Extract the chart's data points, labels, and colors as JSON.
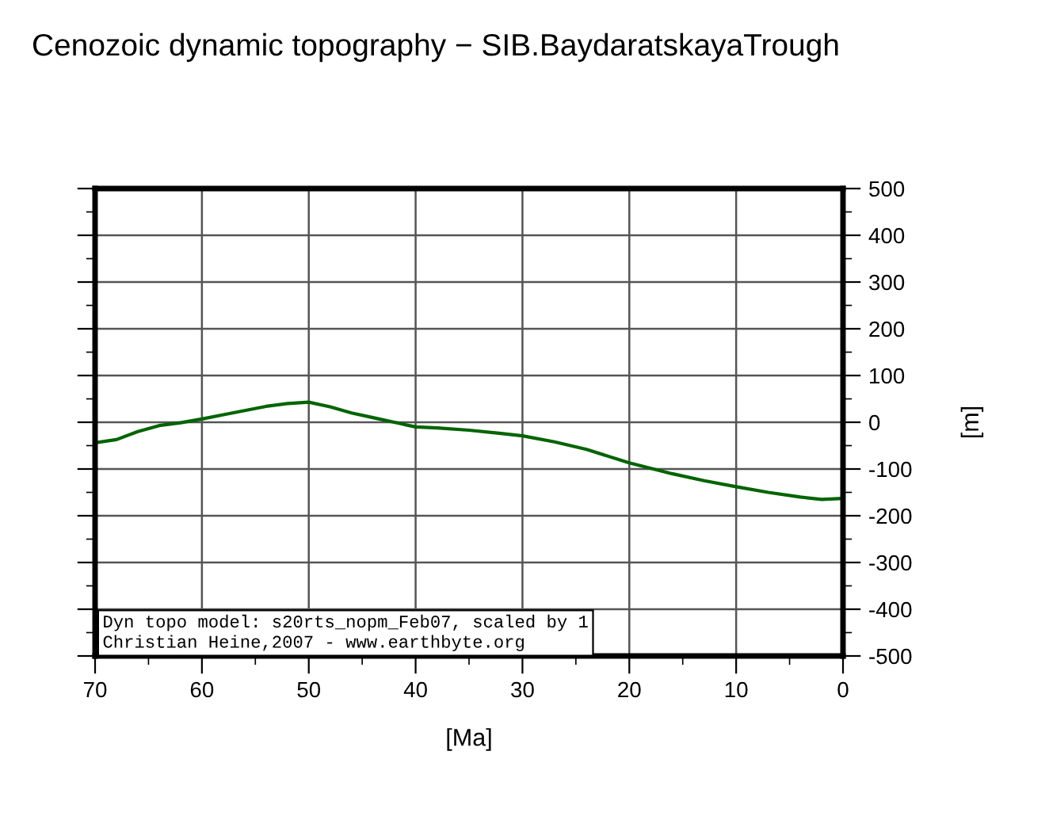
{
  "chart_data": {
    "type": "line",
    "title": "Cenozoic dynamic topography − SIB.BaydaratskayaTrough",
    "xlabel": "[Ma]",
    "ylabel": "[m]",
    "x": [
      70,
      68,
      66,
      64,
      62,
      60,
      58,
      56,
      54,
      52,
      50,
      48,
      46,
      44,
      42,
      40,
      38,
      35,
      32,
      30,
      27,
      24,
      20,
      16,
      13,
      10,
      7,
      4,
      2,
      0
    ],
    "series": [
      {
        "color": "#006400",
        "values": [
          -44,
          -37,
          -20,
          -7,
          -1,
          7,
          16,
          25,
          34,
          40,
          43,
          33,
          20,
          10,
          0,
          -10,
          -12,
          -17,
          -24,
          -29,
          -42,
          -58,
          -87,
          -110,
          -125,
          -138,
          -150,
          -160,
          -165,
          -163
        ]
      }
    ],
    "xlim": [
      70,
      0
    ],
    "xticks": [
      70,
      60,
      50,
      40,
      30,
      20,
      10,
      0
    ],
    "ylim": [
      -500,
      500
    ],
    "yticks": [
      -500,
      -400,
      -300,
      -200,
      -100,
      0,
      100,
      200,
      300,
      400,
      500
    ],
    "grid": true,
    "marker": "none",
    "line_style": "solid",
    "annotations": [
      "Dyn topo model: s20rts_nopm_Feb07, scaled by 1",
      "Christian Heine,2007 - www.earthbyte.org"
    ]
  }
}
